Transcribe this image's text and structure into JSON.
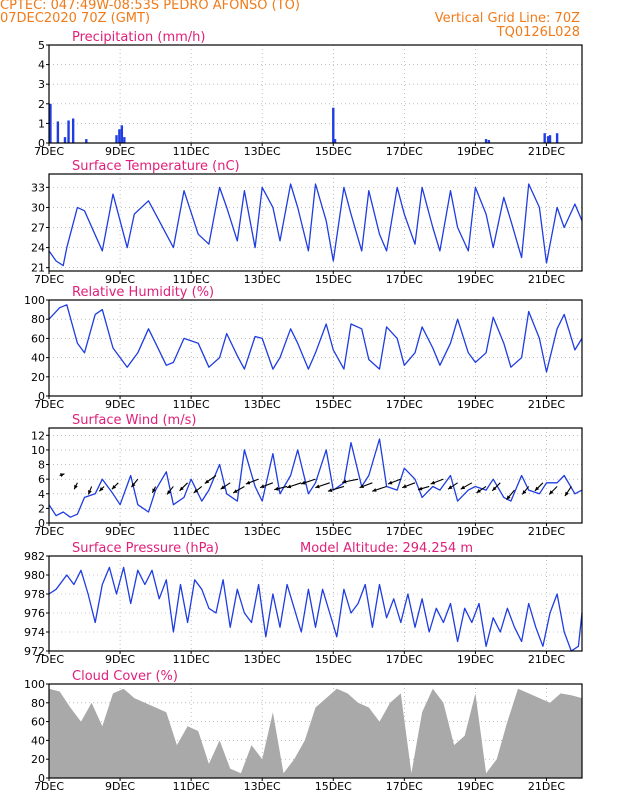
{
  "header": {
    "line1": "CPTEC:   047:49W-08:53S   PEDRO AFONSO (TO)",
    "line2": "07DEC2020 70Z (GMT)",
    "grid_line": "Vertical Grid Line: 70Z",
    "code": "TQ0126L028"
  },
  "colors": {
    "header": "#f07b1a",
    "title": "#e0207a",
    "series": "#1f3de0",
    "cloud": "#a9a9a9",
    "axis": "#000000"
  },
  "chart_data": [
    {
      "type": "bar",
      "title": "Precipitation (mm/h)",
      "x_tick_labels": [
        "7DEC",
        "9DEC",
        "11DEC",
        "13DEC",
        "15DEC",
        "17DEC",
        "19DEC",
        "21DEC"
      ],
      "x_range_days": [
        7,
        22
      ],
      "ylim": [
        0,
        5
      ],
      "yticks": [
        "0",
        "1",
        "2",
        "3",
        "4",
        "5"
      ],
      "grid": true,
      "x_day": [
        7.04,
        7.25,
        7.45,
        7.55,
        7.68,
        8.05,
        8.9,
        8.98,
        9.05,
        9.12,
        15.0,
        15.05,
        19.3,
        19.38,
        20.95,
        21.05,
        21.1,
        21.3
      ],
      "values": [
        2.0,
        1.1,
        0.3,
        1.15,
        1.25,
        0.2,
        0.4,
        0.7,
        0.9,
        0.3,
        1.8,
        0.2,
        0.2,
        0.15,
        0.5,
        0.35,
        0.4,
        0.5
      ]
    },
    {
      "type": "line",
      "title": "Surface Temperature (nC)",
      "x_tick_labels": [
        "7DEC",
        "9DEC",
        "11DEC",
        "13DEC",
        "15DEC",
        "17DEC",
        "19DEC",
        "21DEC"
      ],
      "x_range_days": [
        7,
        22
      ],
      "ylim": [
        20.5,
        35
      ],
      "yticks": [
        "21",
        "24",
        "27",
        "30",
        "33"
      ],
      "grid": true,
      "x_day": [
        7.0,
        7.2,
        7.4,
        7.5,
        7.8,
        8.0,
        8.5,
        8.8,
        9.2,
        9.4,
        9.8,
        10.0,
        10.5,
        10.8,
        11.2,
        11.5,
        11.8,
        12.0,
        12.3,
        12.5,
        12.8,
        13.0,
        13.3,
        13.5,
        13.8,
        14.0,
        14.3,
        14.5,
        14.8,
        15.0,
        15.3,
        15.5,
        15.8,
        16.0,
        16.3,
        16.5,
        16.8,
        17.0,
        17.3,
        17.5,
        17.8,
        18.0,
        18.3,
        18.5,
        18.8,
        19.0,
        19.3,
        19.5,
        19.8,
        20.0,
        20.3,
        20.5,
        20.8,
        21.0,
        21.3,
        21.5,
        21.8,
        22.0
      ],
      "values": [
        23.5,
        22.0,
        21.3,
        24.0,
        30.0,
        29.5,
        23.5,
        32.0,
        24.0,
        29.0,
        31.0,
        29.0,
        24.0,
        32.5,
        26.0,
        24.5,
        33.0,
        30.0,
        25.0,
        32.5,
        24.0,
        33.0,
        30.0,
        25.0,
        33.5,
        30.0,
        23.5,
        33.5,
        28.0,
        22.0,
        33.0,
        29.0,
        23.5,
        32.5,
        26.0,
        23.5,
        33.0,
        29.0,
        24.5,
        33.0,
        27.0,
        23.5,
        32.5,
        27.0,
        23.5,
        33.0,
        29.0,
        24.0,
        31.5,
        28.0,
        22.5,
        33.5,
        30.0,
        21.7,
        30.0,
        27.0,
        30.5,
        28.0
      ]
    },
    {
      "type": "line",
      "title": "Relative Humidity (%)",
      "x_tick_labels": [
        "7DEC",
        "9DEC",
        "11DEC",
        "13DEC",
        "15DEC",
        "17DEC",
        "19DEC",
        "21DEC"
      ],
      "x_range_days": [
        7,
        22
      ],
      "ylim": [
        0,
        100
      ],
      "yticks": [
        "0",
        "20",
        "40",
        "60",
        "80",
        "100"
      ],
      "grid": true,
      "x_day": [
        7.0,
        7.3,
        7.5,
        7.8,
        8.0,
        8.3,
        8.5,
        8.8,
        9.2,
        9.5,
        9.8,
        10.0,
        10.3,
        10.5,
        10.8,
        11.2,
        11.5,
        11.8,
        12.0,
        12.3,
        12.5,
        12.8,
        13.0,
        13.3,
        13.5,
        13.8,
        14.0,
        14.3,
        14.5,
        14.8,
        15.0,
        15.3,
        15.5,
        15.8,
        16.0,
        16.3,
        16.5,
        16.8,
        17.0,
        17.3,
        17.5,
        17.8,
        18.0,
        18.3,
        18.5,
        18.8,
        19.0,
        19.3,
        19.5,
        19.8,
        20.0,
        20.3,
        20.5,
        20.8,
        21.0,
        21.3,
        21.5,
        21.8,
        22.0
      ],
      "values": [
        80,
        92,
        95,
        55,
        45,
        85,
        90,
        50,
        30,
        45,
        70,
        55,
        32,
        35,
        60,
        55,
        30,
        40,
        65,
        42,
        28,
        62,
        60,
        28,
        40,
        70,
        55,
        28,
        45,
        75,
        48,
        28,
        75,
        70,
        38,
        28,
        72,
        60,
        32,
        45,
        72,
        50,
        32,
        55,
        80,
        45,
        35,
        45,
        82,
        55,
        30,
        40,
        88,
        60,
        25,
        70,
        85,
        48,
        60
      ]
    },
    {
      "type": "line",
      "title": "Surface Wind (m/s)",
      "x_tick_labels": [
        "7DEC",
        "9DEC",
        "11DEC",
        "13DEC",
        "15DEC",
        "17DEC",
        "19DEC",
        "21DEC"
      ],
      "x_range_days": [
        7,
        22
      ],
      "ylim": [
        0,
        13
      ],
      "yticks": [
        "0",
        "2",
        "4",
        "6",
        "8",
        "10",
        "12"
      ],
      "grid": true,
      "x_day": [
        7.0,
        7.2,
        7.4,
        7.6,
        7.8,
        8.0,
        8.3,
        8.5,
        8.8,
        9.0,
        9.3,
        9.5,
        9.8,
        10.0,
        10.3,
        10.5,
        10.8,
        11.0,
        11.3,
        11.5,
        11.8,
        12.0,
        12.3,
        12.5,
        12.8,
        13.0,
        13.3,
        13.5,
        13.8,
        14.0,
        14.3,
        14.5,
        14.8,
        15.0,
        15.3,
        15.5,
        15.8,
        16.0,
        16.3,
        16.5,
        16.8,
        17.0,
        17.3,
        17.5,
        17.8,
        18.0,
        18.3,
        18.5,
        18.8,
        19.0,
        19.3,
        19.5,
        19.8,
        20.0,
        20.3,
        20.5,
        20.8,
        21.0,
        21.3,
        21.5,
        21.8,
        22.0
      ],
      "values": [
        2.5,
        1.0,
        1.5,
        0.8,
        1.2,
        3.5,
        4.0,
        6.0,
        4.0,
        2.5,
        6.5,
        2.5,
        1.5,
        4.5,
        7.0,
        2.5,
        3.5,
        6.0,
        3.0,
        4.5,
        8.0,
        4.0,
        3.0,
        10.0,
        5.0,
        3.0,
        9.5,
        4.0,
        6.5,
        10.0,
        4.0,
        5.5,
        10.0,
        4.5,
        5.5,
        11.0,
        5.0,
        6.5,
        11.5,
        5.0,
        4.5,
        7.5,
        6.0,
        3.5,
        5.0,
        4.5,
        6.5,
        3.0,
        4.5,
        5.0,
        4.5,
        6.0,
        3.5,
        3.0,
        6.5,
        4.5,
        4.0,
        5.5,
        5.5,
        6.5,
        4.0,
        4.5
      ],
      "arrows_x_day": [
        7.3,
        7.8,
        8.2,
        8.55,
        8.95,
        9.5,
        10.0,
        10.5,
        10.9,
        11.3,
        11.7,
        12.1,
        12.5,
        12.9,
        13.3,
        13.7,
        14.1,
        14.5,
        14.9,
        15.3,
        15.7,
        16.1,
        16.5,
        16.9,
        17.3,
        17.7,
        18.1,
        18.5,
        18.9,
        19.3,
        19.7,
        20.1,
        20.5,
        20.9,
        21.3,
        21.7
      ],
      "arrows_level": [
        6.5,
        5.5,
        5.0,
        5.0,
        5.5,
        6.0,
        5.0,
        5.0,
        5.5,
        5.0,
        6.5,
        5.5,
        5.0,
        6.0,
        5.5,
        5.0,
        5.5,
        6.0,
        5.5,
        5.0,
        6.0,
        5.5,
        5.0,
        6.0,
        5.5,
        5.0,
        6.0,
        5.5,
        5.5,
        5.0,
        5.5,
        4.5,
        5.0,
        5.5,
        5.0,
        5.0
      ],
      "arrows_dx_ms": [
        1.5,
        -1.0,
        -1.0,
        -1.5,
        -2.0,
        -2.0,
        -1.0,
        -2.0,
        -2.5,
        -2.5,
        -3.5,
        -3.0,
        -3.5,
        -4.0,
        -4.0,
        -4.0,
        -4.5,
        -4.5,
        -4.5,
        -5.0,
        -5.0,
        -4.0,
        -4.5,
        -4.0,
        -4.0,
        -3.5,
        -4.0,
        -3.0,
        -3.5,
        -3.0,
        -2.5,
        -2.5,
        -2.0,
        -2.5,
        -2.5,
        -2.0
      ],
      "arrows_dy_ms": [
        0.5,
        -2.0,
        -2.5,
        -1.5,
        -2.0,
        -2.5,
        -2.0,
        -2.5,
        -2.5,
        -2.0,
        -2.5,
        -2.0,
        -2.0,
        -1.5,
        -1.5,
        -1.0,
        -1.5,
        -1.5,
        -1.5,
        -1.5,
        -1.0,
        -1.5,
        -1.5,
        -1.5,
        -1.5,
        -1.0,
        -1.5,
        -2.0,
        -2.0,
        -2.0,
        -2.5,
        -3.0,
        -2.5,
        -2.5,
        -2.5,
        -3.0
      ]
    },
    {
      "type": "line",
      "title": "Surface Pressure (hPa)",
      "annotation": "Model Altitude: 294.254 m",
      "x_tick_labels": [
        "7DEC",
        "9DEC",
        "11DEC",
        "13DEC",
        "15DEC",
        "17DEC",
        "19DEC",
        "21DEC"
      ],
      "x_range_days": [
        7,
        22
      ],
      "ylim": [
        972,
        982
      ],
      "yticks": [
        "972",
        "974",
        "976",
        "978",
        "980",
        "982"
      ],
      "grid": true,
      "x_day": [
        7.0,
        7.2,
        7.5,
        7.7,
        7.9,
        8.1,
        8.3,
        8.5,
        8.7,
        8.9,
        9.1,
        9.3,
        9.5,
        9.7,
        9.9,
        10.1,
        10.3,
        10.5,
        10.7,
        10.9,
        11.1,
        11.3,
        11.5,
        11.7,
        11.9,
        12.1,
        12.3,
        12.5,
        12.7,
        12.9,
        13.1,
        13.3,
        13.5,
        13.7,
        13.9,
        14.1,
        14.3,
        14.5,
        14.7,
        14.9,
        15.1,
        15.3,
        15.5,
        15.7,
        15.9,
        16.1,
        16.3,
        16.5,
        16.7,
        16.9,
        17.1,
        17.3,
        17.5,
        17.7,
        17.9,
        18.1,
        18.3,
        18.5,
        18.7,
        18.9,
        19.1,
        19.3,
        19.5,
        19.7,
        19.9,
        20.1,
        20.3,
        20.5,
        20.7,
        20.9,
        21.1,
        21.3,
        21.5,
        21.7,
        21.9,
        22.0
      ],
      "values": [
        978.0,
        978.5,
        980.0,
        979.0,
        980.5,
        978.0,
        975.0,
        979.0,
        980.8,
        978.0,
        980.8,
        977.0,
        980.5,
        979.0,
        980.5,
        977.5,
        979.5,
        974.0,
        979.0,
        975.0,
        979.5,
        978.5,
        976.5,
        976.0,
        979.5,
        974.5,
        978.5,
        976.0,
        975.0,
        979.0,
        973.5,
        978.0,
        974.5,
        979.0,
        976.5,
        974.0,
        978.5,
        974.5,
        978.5,
        976.0,
        973.5,
        978.5,
        976.0,
        977.0,
        979.0,
        974.5,
        979.0,
        975.5,
        977.5,
        975.0,
        978.0,
        974.5,
        977.5,
        974.0,
        976.5,
        975.0,
        977.0,
        973.0,
        976.5,
        975.0,
        977.0,
        972.5,
        975.5,
        974.0,
        976.5,
        974.5,
        973.0,
        977.0,
        974.5,
        972.5,
        976.0,
        978.0,
        974.0,
        972.0,
        972.5,
        976.0
      ]
    },
    {
      "type": "area",
      "title": "Cloud Cover (%)",
      "x_tick_labels": [
        "7DEC",
        "9DEC",
        "11DEC",
        "13DEC",
        "15DEC",
        "17DEC",
        "19DEC",
        "21DEC"
      ],
      "x_range_days": [
        7,
        22
      ],
      "ylim": [
        0,
        100
      ],
      "yticks": [
        "0",
        "20",
        "40",
        "60",
        "80",
        "100"
      ],
      "grid": true,
      "x_day": [
        7.0,
        7.3,
        7.6,
        7.9,
        8.2,
        8.5,
        8.8,
        9.1,
        9.4,
        9.7,
        10.0,
        10.3,
        10.6,
        10.9,
        11.2,
        11.5,
        11.8,
        12.1,
        12.4,
        12.7,
        13.0,
        13.3,
        13.6,
        13.9,
        14.2,
        14.5,
        14.8,
        15.1,
        15.4,
        15.7,
        16.0,
        16.3,
        16.6,
        16.9,
        17.2,
        17.5,
        17.8,
        18.1,
        18.4,
        18.7,
        19.0,
        19.3,
        19.6,
        19.9,
        20.2,
        20.5,
        20.8,
        21.1,
        21.4,
        21.7,
        22.0
      ],
      "values": [
        95,
        92,
        75,
        60,
        80,
        55,
        90,
        95,
        85,
        80,
        75,
        70,
        35,
        55,
        50,
        15,
        40,
        10,
        5,
        35,
        20,
        70,
        5,
        20,
        40,
        75,
        85,
        95,
        90,
        80,
        75,
        60,
        80,
        90,
        5,
        70,
        95,
        80,
        35,
        45,
        90,
        5,
        20,
        60,
        95,
        90,
        85,
        80,
        90,
        88,
        85
      ]
    }
  ]
}
